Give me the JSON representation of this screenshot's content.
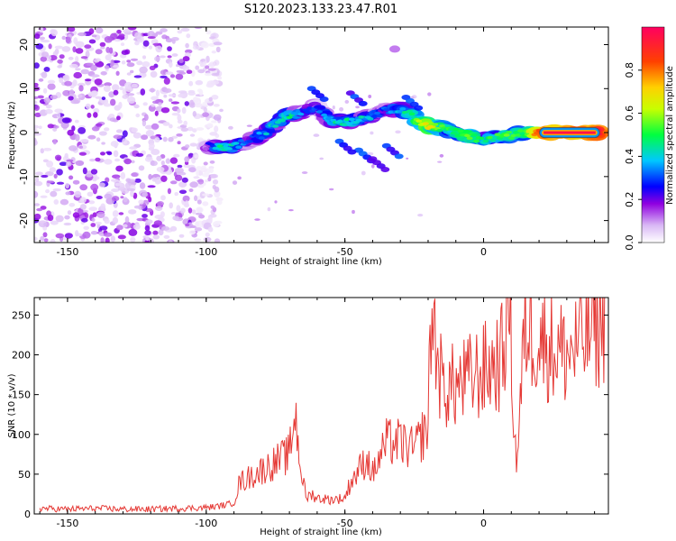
{
  "title": "S120.2023.133.23.47.R01",
  "chart_data": [
    {
      "type": "heatmap",
      "xlabel": "Height of straight line (km)",
      "ylabel": "Frequency (Hz)",
      "xlim": [
        -162,
        45
      ],
      "ylim": [
        -25,
        24
      ],
      "xticks": [
        -150,
        -100,
        -50,
        0
      ],
      "yticks": [
        20,
        10,
        0,
        -10,
        -20
      ],
      "colorbar": {
        "label": "Normalized spectral amplitude",
        "range": [
          0.0,
          1.0
        ],
        "ticks": [
          0.0,
          0.2,
          0.4,
          0.6,
          0.8
        ],
        "colors": [
          "#ffffff",
          "#d9b8f5",
          "#9000e0",
          "#0000ff",
          "#00c8ff",
          "#00ff40",
          "#c8ff00",
          "#ffd000",
          "#ff4000",
          "#ff0060"
        ]
      },
      "trace": {
        "x": [
          -100,
          -95,
          -90,
          -85,
          -80,
          -75,
          -70,
          -65,
          -60,
          -55,
          -50,
          -45,
          -40,
          -35,
          -30,
          -25,
          -20,
          -15,
          -10,
          -5,
          0,
          5,
          10,
          15,
          20,
          25,
          30,
          35,
          40,
          42
        ],
        "y": [
          -3,
          -3.5,
          -3,
          -2,
          -0.5,
          2,
          4,
          5,
          6,
          2.5,
          2.5,
          3,
          4,
          5,
          5.5,
          3.5,
          1.5,
          1,
          0,
          -1,
          -1.5,
          -1,
          -0.5,
          0,
          0,
          0,
          0,
          0,
          0,
          0
        ],
        "amplitude": [
          0.2,
          0.45,
          0.4,
          0.3,
          0.35,
          0.4,
          0.45,
          0.3,
          0.25,
          0.4,
          0.45,
          0.4,
          0.35,
          0.3,
          0.4,
          0.5,
          0.7,
          0.5,
          0.5,
          0.55,
          0.45,
          0.5,
          0.55,
          0.5,
          0.9,
          0.95,
          0.95,
          0.95,
          0.95,
          0.95
        ]
      },
      "noise_region": {
        "x_range": [
          -162,
          -95
        ],
        "y_range": [
          -25,
          24
        ]
      }
    },
    {
      "type": "line",
      "xlabel": "Height of straight line (km)",
      "ylabel": "SNR (10 * v/v)",
      "xlim": [
        -162,
        45
      ],
      "ylim": [
        0,
        272
      ],
      "xticks": [
        -150,
        -100,
        -50,
        0
      ],
      "yticks": [
        0,
        50,
        100,
        150,
        200,
        250
      ],
      "color": "#e53935",
      "series": [
        {
          "x": [
            -160,
            -150,
            -140,
            -130,
            -120,
            -110,
            -100,
            -95,
            -90,
            -88,
            -85,
            -80,
            -75,
            -70,
            -68,
            -66,
            -64,
            -62,
            -60,
            -55,
            -50,
            -48,
            -45,
            -42,
            -40,
            -35,
            -30,
            -25,
            -22,
            -20,
            -19,
            -15,
            -10,
            -5,
            0,
            5,
            7,
            9,
            10,
            11,
            12,
            15,
            20,
            25,
            30,
            35,
            40,
            44
          ],
          "y": [
            7,
            6,
            7,
            6,
            6,
            7,
            8,
            10,
            14,
            40,
            45,
            55,
            65,
            75,
            130,
            60,
            20,
            25,
            20,
            18,
            20,
            40,
            55,
            70,
            50,
            90,
            90,
            80,
            100,
            110,
            255,
            160,
            160,
            170,
            180,
            190,
            200,
            270,
            220,
            100,
            65,
            240,
            220,
            210,
            200,
            215,
            235,
            240
          ]
        }
      ]
    }
  ]
}
